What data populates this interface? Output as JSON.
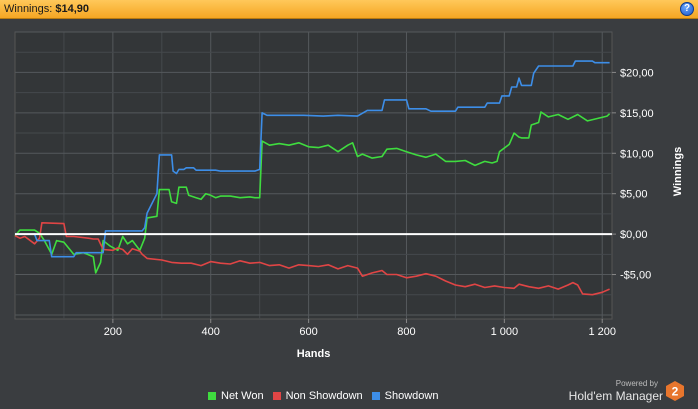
{
  "header": {
    "label": "Winnings:",
    "value": "$14,90",
    "help_glyph": "?"
  },
  "branding": {
    "powered_by": "Powered by",
    "product": "Hold'em Manager",
    "version_badge": "2",
    "accent_color": "#e8762d"
  },
  "chart_data": {
    "type": "line",
    "title": "",
    "xlabel": "Hands",
    "ylabel": "Winnings",
    "xlim": [
      0,
      1220
    ],
    "ylim": [
      -10.5,
      25
    ],
    "x_ticks": [
      {
        "value": 200,
        "label": "200"
      },
      {
        "value": 400,
        "label": "400"
      },
      {
        "value": 600,
        "label": "600"
      },
      {
        "value": 800,
        "label": "800"
      },
      {
        "value": 1000,
        "label": "1 000"
      },
      {
        "value": 1200,
        "label": "1 200"
      }
    ],
    "y_ticks": [
      {
        "value": 20,
        "label": "$20,00"
      },
      {
        "value": 15,
        "label": "$15,00"
      },
      {
        "value": 10,
        "label": "$10,00"
      },
      {
        "value": 5,
        "label": "$5,00"
      },
      {
        "value": 0,
        "label": "$0,00"
      },
      {
        "value": -5,
        "label": "-$5,00"
      }
    ],
    "grid": true,
    "zero_line": true,
    "legend_position": "bottom",
    "series": [
      {
        "name": "Net Won",
        "color": "#3fdc3f",
        "points": [
          [
            0,
            -0.2
          ],
          [
            10,
            0.5
          ],
          [
            40,
            0.5
          ],
          [
            50,
            0.1
          ],
          [
            60,
            -0.8
          ],
          [
            75,
            -2.5
          ],
          [
            85,
            -0.8
          ],
          [
            100,
            -1.0
          ],
          [
            120,
            -2.5
          ],
          [
            140,
            -2.3
          ],
          [
            160,
            -2.8
          ],
          [
            165,
            -4.8
          ],
          [
            175,
            -3.5
          ],
          [
            180,
            -0.8
          ],
          [
            195,
            -1.5
          ],
          [
            210,
            -2.0
          ],
          [
            220,
            -0.3
          ],
          [
            230,
            -1.2
          ],
          [
            240,
            -0.8
          ],
          [
            255,
            -2.0
          ],
          [
            265,
            -0.5
          ],
          [
            270,
            2.0
          ],
          [
            290,
            2.2
          ],
          [
            295,
            5.5
          ],
          [
            315,
            5.5
          ],
          [
            320,
            4.0
          ],
          [
            330,
            3.8
          ],
          [
            335,
            5.8
          ],
          [
            350,
            5.8
          ],
          [
            355,
            4.8
          ],
          [
            370,
            4.5
          ],
          [
            380,
            4.3
          ],
          [
            390,
            5.0
          ],
          [
            400,
            4.8
          ],
          [
            410,
            4.5
          ],
          [
            420,
            4.7
          ],
          [
            440,
            4.7
          ],
          [
            460,
            4.5
          ],
          [
            480,
            4.6
          ],
          [
            490,
            4.5
          ],
          [
            500,
            4.5
          ],
          [
            505,
            11.5
          ],
          [
            520,
            11.0
          ],
          [
            540,
            11.2
          ],
          [
            560,
            11.0
          ],
          [
            580,
            11.3
          ],
          [
            600,
            10.8
          ],
          [
            620,
            10.7
          ],
          [
            640,
            11.0
          ],
          [
            660,
            10.2
          ],
          [
            680,
            11.0
          ],
          [
            690,
            11.3
          ],
          [
            700,
            9.6
          ],
          [
            710,
            9.9
          ],
          [
            730,
            9.4
          ],
          [
            750,
            9.6
          ],
          [
            760,
            10.5
          ],
          [
            780,
            10.6
          ],
          [
            800,
            10.2
          ],
          [
            820,
            9.8
          ],
          [
            840,
            9.5
          ],
          [
            860,
            9.9
          ],
          [
            880,
            9.0
          ],
          [
            900,
            9.0
          ],
          [
            920,
            9.1
          ],
          [
            940,
            8.5
          ],
          [
            960,
            9.0
          ],
          [
            975,
            8.8
          ],
          [
            985,
            9.0
          ],
          [
            990,
            10.2
          ],
          [
            1010,
            11.1
          ],
          [
            1020,
            12.5
          ],
          [
            1030,
            12.0
          ],
          [
            1035,
            11.9
          ],
          [
            1050,
            11.9
          ],
          [
            1055,
            13.5
          ],
          [
            1070,
            13.8
          ],
          [
            1075,
            15.1
          ],
          [
            1090,
            14.5
          ],
          [
            1110,
            14.8
          ],
          [
            1130,
            14.2
          ],
          [
            1150,
            14.8
          ],
          [
            1170,
            14.0
          ],
          [
            1190,
            14.3
          ],
          [
            1210,
            14.6
          ],
          [
            1215,
            14.9
          ]
        ]
      },
      {
        "name": "Non Showdown",
        "color": "#e04545",
        "points": [
          [
            0,
            -0.2
          ],
          [
            10,
            -0.5
          ],
          [
            20,
            -0.3
          ],
          [
            40,
            -1.2
          ],
          [
            50,
            -0.5
          ],
          [
            55,
            1.4
          ],
          [
            100,
            1.3
          ],
          [
            105,
            -0.3
          ],
          [
            120,
            -0.3
          ],
          [
            150,
            -0.5
          ],
          [
            160,
            -0.6
          ],
          [
            170,
            -0.6
          ],
          [
            180,
            -1.9
          ],
          [
            200,
            -2.0
          ],
          [
            210,
            -1.7
          ],
          [
            220,
            -1.9
          ],
          [
            230,
            -2.5
          ],
          [
            240,
            -1.8
          ],
          [
            255,
            -2.1
          ],
          [
            260,
            -2.5
          ],
          [
            270,
            -3.0
          ],
          [
            300,
            -3.2
          ],
          [
            320,
            -3.5
          ],
          [
            340,
            -3.6
          ],
          [
            360,
            -3.6
          ],
          [
            380,
            -3.9
          ],
          [
            400,
            -3.4
          ],
          [
            420,
            -3.6
          ],
          [
            440,
            -3.7
          ],
          [
            460,
            -3.3
          ],
          [
            480,
            -3.6
          ],
          [
            500,
            -3.5
          ],
          [
            520,
            -3.9
          ],
          [
            540,
            -3.8
          ],
          [
            560,
            -4.2
          ],
          [
            580,
            -3.8
          ],
          [
            600,
            -3.9
          ],
          [
            620,
            -4.0
          ],
          [
            640,
            -3.8
          ],
          [
            660,
            -4.3
          ],
          [
            680,
            -3.9
          ],
          [
            700,
            -4.2
          ],
          [
            710,
            -5.2
          ],
          [
            730,
            -4.8
          ],
          [
            750,
            -4.5
          ],
          [
            760,
            -5.0
          ],
          [
            780,
            -5.0
          ],
          [
            800,
            -5.4
          ],
          [
            820,
            -5.2
          ],
          [
            840,
            -4.9
          ],
          [
            860,
            -5.2
          ],
          [
            880,
            -5.8
          ],
          [
            900,
            -6.3
          ],
          [
            920,
            -6.5
          ],
          [
            940,
            -6.2
          ],
          [
            960,
            -6.6
          ],
          [
            980,
            -6.4
          ],
          [
            1000,
            -6.6
          ],
          [
            1020,
            -6.7
          ],
          [
            1030,
            -6.2
          ],
          [
            1050,
            -6.5
          ],
          [
            1070,
            -6.7
          ],
          [
            1090,
            -6.4
          ],
          [
            1110,
            -6.8
          ],
          [
            1130,
            -6.3
          ],
          [
            1140,
            -6.0
          ],
          [
            1150,
            -6.3
          ],
          [
            1160,
            -7.4
          ],
          [
            1180,
            -7.5
          ],
          [
            1200,
            -7.2
          ],
          [
            1215,
            -6.8
          ]
        ]
      },
      {
        "name": "Showdown",
        "color": "#3d8ee8",
        "points": [
          [
            0,
            0
          ],
          [
            40,
            0
          ],
          [
            45,
            -0.8
          ],
          [
            70,
            -0.8
          ],
          [
            75,
            -2.8
          ],
          [
            120,
            -2.8
          ],
          [
            125,
            -2.3
          ],
          [
            180,
            -2.3
          ],
          [
            185,
            0.4
          ],
          [
            260,
            0.4
          ],
          [
            265,
            0.8
          ],
          [
            270,
            2.6
          ],
          [
            290,
            5.0
          ],
          [
            295,
            9.8
          ],
          [
            320,
            9.8
          ],
          [
            323,
            7.8
          ],
          [
            330,
            7.5
          ],
          [
            335,
            8.0
          ],
          [
            345,
            8.0
          ],
          [
            350,
            8.2
          ],
          [
            365,
            8.2
          ],
          [
            370,
            7.9
          ],
          [
            410,
            7.9
          ],
          [
            420,
            7.8
          ],
          [
            490,
            7.8
          ],
          [
            500,
            8.0
          ],
          [
            505,
            15.0
          ],
          [
            515,
            14.7
          ],
          [
            550,
            14.7
          ],
          [
            590,
            14.7
          ],
          [
            630,
            14.6
          ],
          [
            660,
            14.7
          ],
          [
            700,
            14.6
          ],
          [
            720,
            15.3
          ],
          [
            750,
            15.3
          ],
          [
            755,
            16.6
          ],
          [
            800,
            16.6
          ],
          [
            805,
            15.5
          ],
          [
            840,
            15.5
          ],
          [
            850,
            15.2
          ],
          [
            900,
            15.2
          ],
          [
            905,
            15.7
          ],
          [
            960,
            15.7
          ],
          [
            965,
            16.2
          ],
          [
            990,
            16.2
          ],
          [
            995,
            17.1
          ],
          [
            1010,
            17.1
          ],
          [
            1015,
            18.2
          ],
          [
            1025,
            18.2
          ],
          [
            1030,
            19.3
          ],
          [
            1035,
            18.4
          ],
          [
            1055,
            18.4
          ],
          [
            1060,
            19.9
          ],
          [
            1070,
            20.8
          ],
          [
            1140,
            20.8
          ],
          [
            1145,
            21.4
          ],
          [
            1180,
            21.4
          ],
          [
            1185,
            21.2
          ],
          [
            1215,
            21.2
          ]
        ]
      }
    ]
  }
}
